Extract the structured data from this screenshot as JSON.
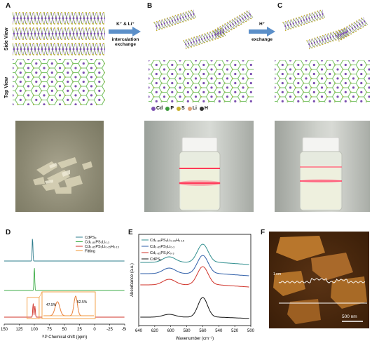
{
  "panels": {
    "A": "A",
    "B": "B",
    "C": "C",
    "D": "D",
    "E": "E",
    "F": "F"
  },
  "structure": {
    "side_view": "Side View",
    "top_view": "Top View",
    "arrow1_label_1": "K⁺ & Li⁺",
    "arrow1_label_2": "intercalation",
    "arrow1_label_3": "exchange",
    "arrow2_label_1": "H⁺",
    "arrow2_label_2": "exchange",
    "atom_legend": [
      {
        "symbol": "Cd",
        "color": "#7b4fb0"
      },
      {
        "symbol": "P",
        "color": "#3a9a3a"
      },
      {
        "symbol": "S",
        "color": "#c7b12c"
      },
      {
        "symbol": "Li",
        "color": "#e0a278"
      },
      {
        "symbol": "H",
        "color": "#333333"
      }
    ]
  },
  "chart_data": [
    {
      "type": "line",
      "panel": "D",
      "xlabel": "³¹P Chemical shift (ppm)",
      "xlim": [
        150,
        -50
      ],
      "x_ticks": [
        150,
        125,
        100,
        75,
        50,
        25,
        0,
        -25,
        -50
      ],
      "legend": [
        "CdPS₃",
        "Cd₀.₈₅PS₃Li₀.₃",
        "Cd₀.₈₅PS₃Li₀.₁₅H₀.₁₅",
        "Fitting"
      ],
      "series": [
        {
          "name": "CdPS₃",
          "color": "#2e7c8c",
          "peak_x": 103
        },
        {
          "name": "Cd₀.₈₅PS₃Li₀.₃",
          "color": "#3fae49",
          "peak_x": 100
        },
        {
          "name": "Cd₀.₈₅PS₃Li₀.₁₅H₀.₁₅",
          "color": "#d0332a",
          "peak_x": 102
        },
        {
          "name": "Fitting",
          "color": "#f29a3a"
        }
      ],
      "annotations": [
        "47.5%",
        "52.5%"
      ]
    },
    {
      "type": "line",
      "panel": "E",
      "xlabel": "Wavenumber (cm⁻¹)",
      "ylabel": "Absorbance (a.u.)",
      "xlim": [
        640,
        500
      ],
      "x_ticks": [
        640,
        620,
        600,
        580,
        560,
        540,
        520,
        500
      ],
      "series": [
        {
          "name": "Cd₀.₈₅PS₃Li₀.₁₅H₀.₁₅",
          "color": "#2f8e8e"
        },
        {
          "name": "Cd₀.₈₅PS₃Li₀.₃",
          "color": "#2e5ea8"
        },
        {
          "name": "Cd₀.₈₅PS₃K₀.₃",
          "color": "#d0332a"
        },
        {
          "name": "CdPS₃",
          "color": "#111111"
        }
      ]
    }
  ],
  "afm": {
    "height_label": "1 nm",
    "scale_bar": "500 nm",
    "colors": {
      "background": "#4a2a10",
      "flake": "#b8762c"
    }
  }
}
